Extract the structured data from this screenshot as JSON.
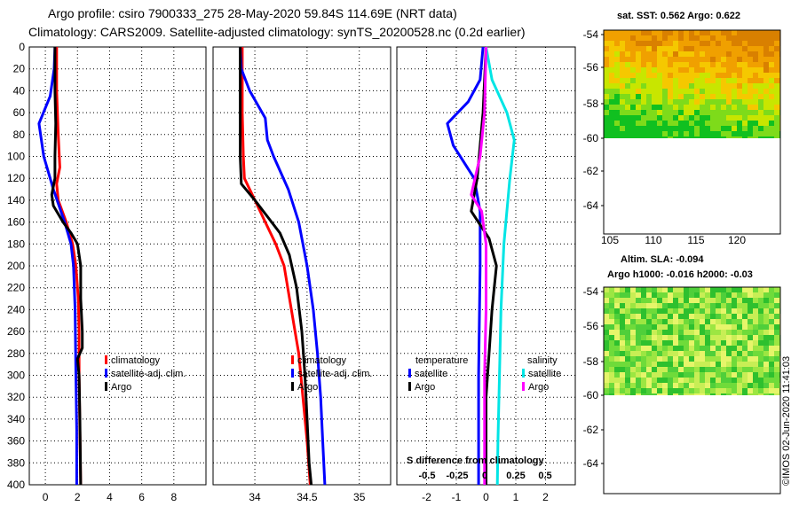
{
  "header": {
    "title_line1": "Argo profile: csiro 7900333_275 28-May-2020 59.84S 114.69E (NRT data)",
    "title_line2": "Climatology: CARS2009. Satellite-adjusted climatology: synTS_20200528.nc (0.2d earlier)"
  },
  "colors": {
    "climatology": "#ff0000",
    "satellite": "#0000ff",
    "argo": "#000000",
    "diff_temperature_satellite": "#0000ff",
    "diff_salinity_satellite": "#00e5e5",
    "diff_salinity_argo": "#ff00ff"
  },
  "chart_data": [
    {
      "type": "line",
      "name": "temperature",
      "ylim": [
        400,
        0
      ],
      "yticks": [
        "0",
        "20",
        "40",
        "60",
        "80",
        "100",
        "120",
        "140",
        "160",
        "180",
        "200",
        "220",
        "240",
        "260",
        "280",
        "300",
        "320",
        "340",
        "360",
        "380",
        "400"
      ],
      "xlim": [
        -1,
        10
      ],
      "xticks": [
        0,
        2,
        4,
        6,
        8
      ],
      "xticklabels": [
        "0",
        "2",
        "4",
        "6",
        "8"
      ],
      "legend": [
        "climatology",
        "satellite-adj. clim.",
        "Argo"
      ],
      "series": [
        {
          "name": "climatology",
          "color": "#ff0000",
          "points": [
            [
              0.7,
              0
            ],
            [
              0.7,
              40
            ],
            [
              0.8,
              80
            ],
            [
              0.9,
              110
            ],
            [
              0.7,
              125
            ],
            [
              0.8,
              140
            ],
            [
              1.3,
              160
            ],
            [
              1.7,
              180
            ],
            [
              1.9,
              200
            ],
            [
              2.05,
              230
            ],
            [
              2.1,
              260
            ],
            [
              2.1,
              300
            ],
            [
              2.15,
              350
            ],
            [
              2.2,
              400
            ]
          ]
        },
        {
          "name": "satellite-adj. clim.",
          "color": "#0000ff",
          "points": [
            [
              0.6,
              0
            ],
            [
              0.55,
              20
            ],
            [
              0.3,
              45
            ],
            [
              -0.4,
              70
            ],
            [
              -0.1,
              100
            ],
            [
              0.5,
              130
            ],
            [
              1.2,
              160
            ],
            [
              1.6,
              180
            ],
            [
              1.75,
              200
            ],
            [
              1.85,
              240
            ],
            [
              1.9,
              300
            ],
            [
              1.95,
              350
            ],
            [
              1.95,
              400
            ]
          ]
        },
        {
          "name": "Argo",
          "color": "#000000",
          "points": [
            [
              0.6,
              0
            ],
            [
              0.6,
              40
            ],
            [
              0.65,
              70
            ],
            [
              0.6,
              100
            ],
            [
              0.6,
              120
            ],
            [
              0.4,
              135
            ],
            [
              0.5,
              145
            ],
            [
              1.1,
              160
            ],
            [
              1.6,
              170
            ],
            [
              2.0,
              180
            ],
            [
              2.2,
              200
            ],
            [
              2.2,
              230
            ],
            [
              2.3,
              260
            ],
            [
              2.3,
              275
            ],
            [
              2.0,
              285
            ],
            [
              2.1,
              300
            ],
            [
              2.15,
              340
            ],
            [
              2.2,
              400
            ]
          ]
        }
      ]
    },
    {
      "type": "line",
      "name": "salinity",
      "ylim": [
        400,
        0
      ],
      "xlim": [
        33.6,
        35.3
      ],
      "xticks": [
        34,
        34.5,
        35
      ],
      "xticklabels": [
        "34",
        "34.5",
        "35"
      ],
      "legend": [
        "climatology",
        "satellite-adj. clim.",
        "Argo"
      ],
      "series": [
        {
          "name": "climatology",
          "color": "#ff0000",
          "points": [
            [
              33.88,
              0
            ],
            [
              33.88,
              60
            ],
            [
              33.89,
              100
            ],
            [
              33.9,
              120
            ],
            [
              34.0,
              140
            ],
            [
              34.1,
              160
            ],
            [
              34.2,
              180
            ],
            [
              34.28,
              200
            ],
            [
              34.35,
              240
            ],
            [
              34.42,
              280
            ],
            [
              34.46,
              320
            ],
            [
              34.5,
              360
            ],
            [
              34.53,
              400
            ]
          ]
        },
        {
          "name": "satellite-adj. clim.",
          "color": "#0000ff",
          "points": [
            [
              33.86,
              0
            ],
            [
              33.87,
              20
            ],
            [
              33.95,
              40
            ],
            [
              34.1,
              65
            ],
            [
              34.12,
              85
            ],
            [
              34.18,
              100
            ],
            [
              34.32,
              130
            ],
            [
              34.42,
              160
            ],
            [
              34.5,
              200
            ],
            [
              34.56,
              240
            ],
            [
              34.6,
              280
            ],
            [
              34.63,
              320
            ],
            [
              34.65,
              360
            ],
            [
              34.67,
              400
            ]
          ]
        },
        {
          "name": "Argo",
          "color": "#000000",
          "points": [
            [
              33.86,
              0
            ],
            [
              33.86,
              60
            ],
            [
              33.86,
              100
            ],
            [
              33.87,
              125
            ],
            [
              34.0,
              140
            ],
            [
              34.12,
              155
            ],
            [
              34.24,
              170
            ],
            [
              34.33,
              190
            ],
            [
              34.4,
              220
            ],
            [
              34.45,
              260
            ],
            [
              34.48,
              300
            ],
            [
              34.5,
              340
            ],
            [
              34.52,
              380
            ],
            [
              34.54,
              400
            ]
          ]
        }
      ]
    },
    {
      "type": "line",
      "name": "difference from climatology",
      "ylim": [
        400,
        0
      ],
      "xlim": [
        -3,
        3
      ],
      "xticks": [
        -2,
        -1,
        0,
        1,
        2
      ],
      "xticklabels": [
        "-2",
        "-1",
        "0",
        "1",
        "2"
      ],
      "xlabel": "S difference from climatology",
      "s_ticklabels": [
        "-0.5",
        "-0.25",
        "0",
        "0.25",
        "0.5"
      ],
      "legend_temperature_title": "temperature",
      "legend_salinity_title": "salinity",
      "legend_temperature": [
        "satellite",
        "Argo"
      ],
      "legend_salinity": [
        "satellite",
        "Argo"
      ],
      "series": [
        {
          "name": "temperature satellite",
          "color": "#0000ff",
          "points": [
            [
              -0.1,
              0
            ],
            [
              -0.2,
              30
            ],
            [
              -0.6,
              50
            ],
            [
              -1.3,
              70
            ],
            [
              -1.1,
              90
            ],
            [
              -0.4,
              120
            ],
            [
              -0.2,
              150
            ],
            [
              -0.2,
              200
            ],
            [
              -0.25,
              300
            ],
            [
              -0.25,
              400
            ]
          ]
        },
        {
          "name": "temperature Argo",
          "color": "#000000",
          "points": [
            [
              0,
              0
            ],
            [
              -0.1,
              60
            ],
            [
              -0.3,
              120
            ],
            [
              -0.5,
              150
            ],
            [
              0.1,
              175
            ],
            [
              0.35,
              200
            ],
            [
              0.2,
              240
            ],
            [
              0.1,
              280
            ],
            [
              0,
              320
            ],
            [
              0,
              400
            ]
          ]
        },
        {
          "name": "salinity satellite",
          "color": "#00e5e5",
          "points": [
            [
              0,
              0
            ],
            [
              0.2,
              30
            ],
            [
              0.7,
              60
            ],
            [
              0.95,
              85
            ],
            [
              0.8,
              120
            ],
            [
              0.6,
              180
            ],
            [
              0.5,
              240
            ],
            [
              0.45,
              300
            ],
            [
              0.4,
              360
            ],
            [
              0.38,
              400
            ]
          ]
        },
        {
          "name": "salinity Argo",
          "color": "#ff00ff",
          "points": [
            [
              0,
              0
            ],
            [
              -0.05,
              60
            ],
            [
              -0.2,
              100
            ],
            [
              -0.5,
              135
            ],
            [
              -0.15,
              150
            ],
            [
              0,
              180
            ],
            [
              0,
              240
            ],
            [
              -0.05,
              300
            ],
            [
              -0.05,
              400
            ]
          ]
        }
      ]
    },
    {
      "type": "heatmap",
      "name": "satellite SST map",
      "title": "sat. SST: 0.562 Argo: 0.622",
      "ylim": [
        -65.5,
        -53.5
      ],
      "yticklabels": [
        "-54",
        "-56",
        "-58",
        "-60",
        "-62",
        "-64"
      ],
      "xticklabels": [
        "105",
        "110",
        "115",
        "120"
      ]
    },
    {
      "type": "heatmap",
      "name": "altimetry SLA map",
      "title": "Altim. SLA: -0.094",
      "subtitle": "Argo h1000: -0.016 h2000: -0.03",
      "ylim": [
        -65.5,
        -53.5
      ],
      "yticklabels": [
        "-54",
        "-56",
        "-58",
        "-60",
        "-62",
        "-64"
      ]
    }
  ],
  "footer": {
    "credit": "©IMOS 02-Jun-2020 11:41:03"
  }
}
